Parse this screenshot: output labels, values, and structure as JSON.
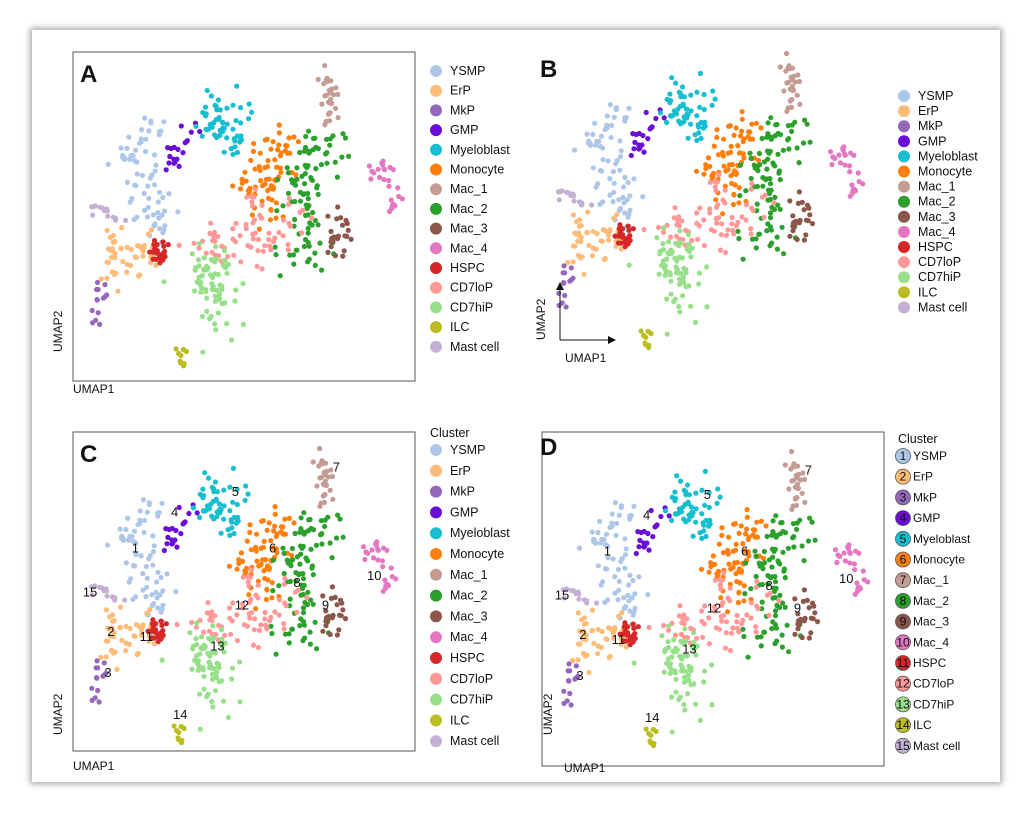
{
  "colors": {
    "YSMP": "#aec7e8",
    "ErP": "#ffbb78",
    "MkP": "#9467bd",
    "GMP": "#6a0dd6",
    "Myeloblast": "#17becf",
    "Monocyte": "#ff7f0e",
    "Mac_1": "#c49c94",
    "Mac_2": "#2ca02c",
    "Mac_3": "#8c564b",
    "Mac_4": "#e377c2",
    "HSPC": "#d62728",
    "CD7loP": "#ff9896",
    "CD7hiP": "#98df8a",
    "ILC": "#bcbd22",
    "Mast cell": "#c5b0d5"
  },
  "chart_data": [
    {
      "type": "scatter",
      "panel": "A",
      "xlabel": "UMAP1",
      "ylabel": "UMAP2",
      "legend_title": "",
      "legend": [
        "YSMP",
        "ErP",
        "MkP",
        "GMP",
        "Myeloblast",
        "Monocyte",
        "Mac_1",
        "Mac_2",
        "Mac_3",
        "Mac_4",
        "HSPC",
        "CD7loP",
        "CD7hiP",
        "ILC",
        "Mast cell"
      ]
    },
    {
      "type": "scatter",
      "panel": "B",
      "xlabel": "UMAP1",
      "ylabel": "UMAP2",
      "legend_title": "",
      "legend": [
        "YSMP",
        "ErP",
        "MkP",
        "GMP",
        "Myeloblast",
        "Monocyte",
        "Mac_1",
        "Mac_2",
        "Mac_3",
        "Mac_4",
        "HSPC",
        "CD7loP",
        "CD7hiP",
        "ILC",
        "Mast cell"
      ]
    },
    {
      "type": "scatter",
      "panel": "C",
      "xlabel": "UMAP1",
      "ylabel": "UMAP2",
      "legend_title": "Cluster",
      "legend": [
        "YSMP",
        "ErP",
        "MkP",
        "GMP",
        "Myeloblast",
        "Monocyte",
        "Mac_1",
        "Mac_2",
        "Mac_3",
        "Mac_4",
        "HSPC",
        "CD7loP",
        "CD7hiP",
        "ILC",
        "Mast cell"
      ],
      "cluster_labels": [
        "1",
        "2",
        "3",
        "4",
        "5",
        "6",
        "7",
        "8",
        "9",
        "10",
        "11",
        "12",
        "13",
        "14",
        "15"
      ]
    },
    {
      "type": "scatter",
      "panel": "D",
      "xlabel": "UMAP1",
      "ylabel": "UMAP2",
      "legend_title": "Cluster",
      "legend": [
        "YSMP",
        "ErP",
        "MkP",
        "GMP",
        "Myeloblast",
        "Monocyte",
        "Mac_1",
        "Mac_2",
        "Mac_3",
        "Mac_4",
        "HSPC",
        "CD7loP",
        "CD7hiP",
        "ILC",
        "Mast cell"
      ],
      "legend_numbers": [
        "1",
        "2",
        "3",
        "4",
        "5",
        "6",
        "7",
        "8",
        "9",
        "10",
        "11",
        "12",
        "13",
        "14",
        "15"
      ],
      "cluster_labels": [
        "1",
        "2",
        "3",
        "4",
        "5",
        "6",
        "7",
        "8",
        "9",
        "10",
        "11",
        "12",
        "13",
        "14",
        "15"
      ]
    }
  ]
}
